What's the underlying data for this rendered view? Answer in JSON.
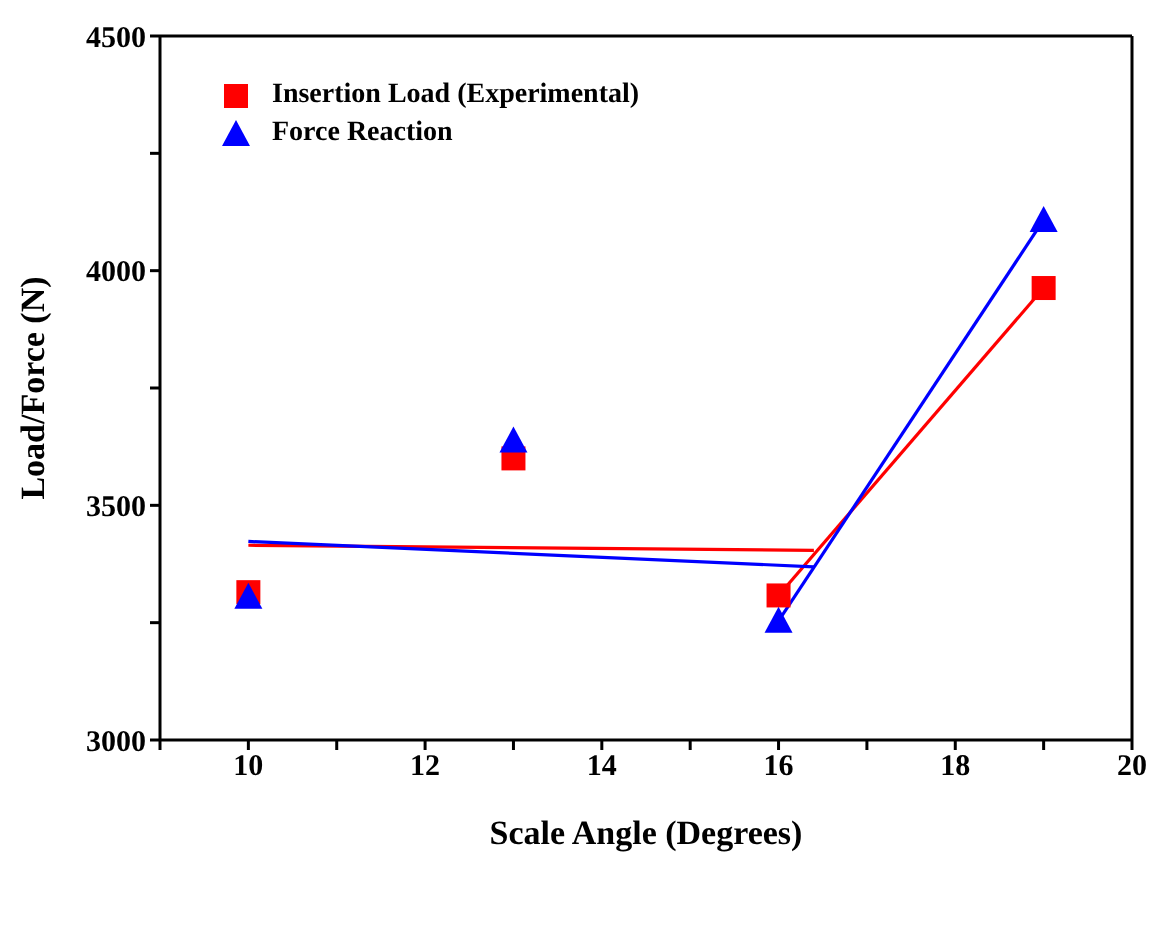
{
  "chart_data": {
    "type": "scatter",
    "xlabel": "Scale Angle (Degrees)",
    "ylabel": "Load/Force (N)",
    "xlim": [
      9,
      20
    ],
    "xticks": [
      {
        "value": 9,
        "label": null
      },
      10,
      {
        "value": 11,
        "label": null
      },
      12,
      {
        "value": 13,
        "label": null
      },
      14,
      {
        "value": 15,
        "label": null
      },
      16,
      {
        "value": 17,
        "label": null
      },
      18,
      {
        "value": 19,
        "label": null
      },
      20
    ],
    "ylim": [
      3000,
      4500
    ],
    "yticks": [
      3000,
      {
        "value": 3250,
        "label": null
      },
      3500,
      {
        "value": 3750,
        "label": null
      },
      4000,
      {
        "value": 4250,
        "label": null
      },
      4500
    ],
    "grid": false,
    "legend": "top left",
    "series": [
      {
        "name": "Insertion Load (Experimental)",
        "marker": "square",
        "color": "#ff0000",
        "x": [
          10,
          13,
          16,
          19
        ],
        "values": [
          3315,
          3600,
          3308,
          3963
        ]
      },
      {
        "name": "Force Reaction",
        "marker": "triangle",
        "color": "#0000ff",
        "x": [
          10,
          13,
          16,
          19
        ],
        "values": [
          3305,
          3638,
          3254,
          4108
        ]
      },
      {
        "type": "line",
        "marker": "none",
        "color": "#ff0000",
        "x": [
          10,
          16.4
        ],
        "values": [
          3415,
          3404
        ]
      },
      {
        "type": "line",
        "marker": "none",
        "color": "#ff0000",
        "x": [
          16,
          19
        ],
        "values": [
          3308,
          3963
        ]
      },
      {
        "type": "line",
        "marker": "none",
        "color": "#0000ff",
        "x": [
          10,
          16.4
        ],
        "values": [
          3423,
          3369
        ]
      },
      {
        "type": "line",
        "marker": "none",
        "color": "#0000ff",
        "x": [
          16,
          19
        ],
        "values": [
          3254,
          4108
        ]
      }
    ]
  }
}
